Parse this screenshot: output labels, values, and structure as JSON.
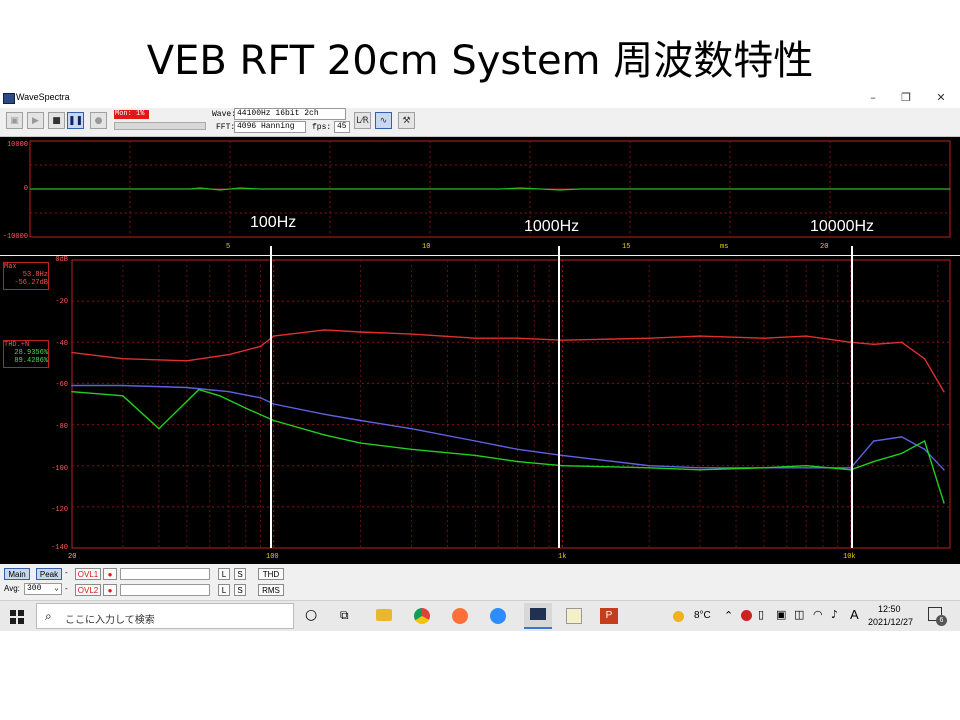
{
  "slide": {
    "title": "VEB RFT 20cm System 周波数特性"
  },
  "window": {
    "title": "WaveSpectra",
    "minimize": "–",
    "restore": "❐",
    "close": "✕"
  },
  "toolbar": {
    "monitor": "Mon: 1%",
    "wave_label": "Wave:",
    "wave_value": "44100Hz 16bit 2ch",
    "fft_label": "FFT:",
    "fft_value": "4096 Hanning",
    "fps_label": "fps:",
    "fps_value": "45"
  },
  "waveform": {
    "y_ticks": [
      "10000",
      "0",
      "-10000"
    ],
    "x_ticks": [
      "5",
      "10",
      "15",
      "ms",
      "20"
    ]
  },
  "spectrum": {
    "y_ticks": [
      "0dB",
      "-20",
      "-40",
      "-60",
      "-80",
      "-100",
      "-120",
      "-140"
    ],
    "x_ticks": [
      "20",
      "100",
      "1k",
      "10k"
    ],
    "max_label": "Max",
    "max_freq": "53.8Hz",
    "max_level": "-56.27dB",
    "thd_label": "THD.+N",
    "thd_1": "28.9356%",
    "thd_2": "89.4286%"
  },
  "annotations": [
    "100Hz",
    "1000Hz",
    "10000Hz"
  ],
  "chart_data": {
    "type": "line",
    "x_scale": "log",
    "xlim": [
      20,
      22050
    ],
    "ylim": [
      -140,
      0
    ],
    "ylabel": "dB",
    "series": [
      {
        "color": "#e03030",
        "x": [
          20,
          30,
          50,
          70,
          90,
          100,
          150,
          200,
          300,
          500,
          700,
          1000,
          2000,
          3000,
          5000,
          7000,
          10000,
          12000,
          15000,
          18000,
          21000
        ],
        "y": [
          -45,
          -48,
          -49,
          -46,
          -42,
          -37,
          -34,
          -35,
          -36,
          -38,
          -38,
          -39,
          -38,
          -37,
          -38,
          -37,
          -40,
          -41,
          -40,
          -48,
          -64
        ]
      },
      {
        "color": "#6060e0",
        "x": [
          20,
          30,
          50,
          70,
          90,
          100,
          150,
          200,
          300,
          500,
          700,
          1000,
          2000,
          3000,
          5000,
          7000,
          10000,
          12000,
          15000,
          18000,
          21000
        ],
        "y": [
          -61,
          -61,
          -62,
          -64,
          -67,
          -70,
          -75,
          -78,
          -82,
          -88,
          -92,
          -95,
          -100,
          -101,
          -101,
          -101,
          -101,
          -88,
          -86,
          -92,
          -102
        ]
      },
      {
        "color": "#20d020",
        "x": [
          20,
          30,
          40,
          55,
          65,
          80,
          100,
          150,
          200,
          300,
          500,
          700,
          1000,
          2000,
          3000,
          5000,
          7000,
          10000,
          12000,
          15000,
          18000,
          21000
        ],
        "y": [
          -64,
          -66,
          -82,
          -63,
          -66,
          -72,
          -78,
          -85,
          -89,
          -92,
          -95,
          -98,
          -100,
          -101,
          -102,
          -101,
          -100,
          -102,
          -98,
          -94,
          -88,
          -118
        ]
      }
    ]
  },
  "panel": {
    "main": "Main",
    "peak": "Peak",
    "avg_label": "Avg:",
    "avg_value": "300",
    "ovl1": "OVL1",
    "ovl2": "OVL2",
    "dash": "-",
    "l": "L",
    "s": "S",
    "thd": "THD",
    "rms": "RMS"
  },
  "taskbar": {
    "search_placeholder": "ここに入力して検索",
    "temperature": "8°C",
    "ime": "A",
    "time": "12:50",
    "date": "2021/12/27",
    "notifications": "6"
  },
  "colors": {
    "accent_red": "#e01818",
    "trace_red": "#e03030",
    "trace_blue": "#6060e0",
    "trace_green": "#20d020"
  }
}
